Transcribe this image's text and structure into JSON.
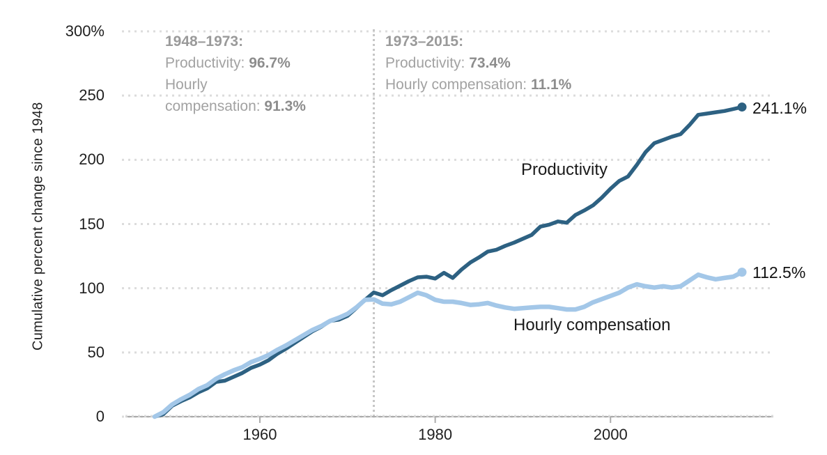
{
  "chart_data": {
    "type": "line",
    "title": "",
    "xlabel": "",
    "ylabel": "Cumulative percent change since 1948",
    "xlim": [
      1948,
      2015
    ],
    "ylim": [
      0,
      300
    ],
    "grid": "dotted-horizontal",
    "legend_position": "inline-labels",
    "x_ticks": [
      {
        "value": 1960,
        "label": "1960"
      },
      {
        "value": 1980,
        "label": "1980"
      },
      {
        "value": 2000,
        "label": "2000"
      }
    ],
    "y_ticks": [
      {
        "value": 0,
        "label": "0"
      },
      {
        "value": 50,
        "label": "50"
      },
      {
        "value": 100,
        "label": "100"
      },
      {
        "value": 150,
        "label": "150"
      },
      {
        "value": 200,
        "label": "200"
      },
      {
        "value": 250,
        "label": "250"
      },
      {
        "value": 300,
        "label": "300%"
      }
    ],
    "vertical_marker_year": 1973,
    "x": [
      1948,
      1949,
      1950,
      1951,
      1952,
      1953,
      1954,
      1955,
      1956,
      1957,
      1958,
      1959,
      1960,
      1961,
      1962,
      1963,
      1964,
      1965,
      1966,
      1967,
      1968,
      1969,
      1970,
      1971,
      1972,
      1973,
      1974,
      1975,
      1976,
      1977,
      1978,
      1979,
      1980,
      1981,
      1982,
      1983,
      1984,
      1985,
      1986,
      1987,
      1988,
      1989,
      1990,
      1991,
      1992,
      1993,
      1994,
      1995,
      1996,
      1997,
      1998,
      1999,
      2000,
      2001,
      2002,
      2003,
      2004,
      2005,
      2006,
      2007,
      2008,
      2009,
      2010,
      2011,
      2012,
      2013,
      2014,
      2015
    ],
    "series": [
      {
        "name": "Productivity",
        "color": "#2d6182",
        "end_label": "241.1%",
        "end_value": 241.1,
        "values": [
          0,
          2,
          8.5,
          12,
          15,
          19,
          22,
          27,
          28,
          31,
          34,
          38,
          40.5,
          44,
          49,
          53,
          57.5,
          62,
          66.5,
          70,
          74.5,
          75.5,
          78.5,
          84.5,
          91,
          96.7,
          94.5,
          98.5,
          102,
          105.5,
          108.5,
          109,
          107.5,
          112,
          108,
          114.5,
          120,
          124,
          128.5,
          130,
          133,
          135.5,
          138.5,
          141.5,
          148,
          149.5,
          152,
          151,
          157,
          160.5,
          164.5,
          170.5,
          177.5,
          183.5,
          187,
          196,
          206,
          213,
          215.5,
          218,
          220,
          227,
          235,
          236,
          237,
          238,
          239.5,
          241.1
        ]
      },
      {
        "name": "Hourly compensation",
        "color": "#a3c7e8",
        "end_label": "112.5%",
        "end_value": 112.5,
        "values": [
          0,
          3.5,
          9.5,
          13.5,
          17,
          21.5,
          24.5,
          29.5,
          33,
          36,
          38.5,
          42.5,
          45,
          48,
          52,
          55.5,
          59.5,
          63.5,
          67.5,
          70.5,
          74.5,
          77,
          80,
          85,
          91,
          91.3,
          88,
          87.5,
          89.5,
          93,
          96.5,
          94.5,
          91,
          89.5,
          89.5,
          88.5,
          87,
          87.5,
          88.5,
          86.5,
          85,
          84,
          84.5,
          85,
          85.5,
          85.5,
          84.5,
          83.5,
          83.5,
          85.5,
          89,
          91.5,
          94,
          96.5,
          100.5,
          103,
          101.5,
          100.5,
          101.5,
          100.5,
          101.5,
          106,
          110.5,
          108.5,
          107,
          108,
          109,
          112.5
        ]
      }
    ]
  },
  "annotations": {
    "period1": {
      "title": "1948–1973:",
      "lines": [
        {
          "prefix": "Productivity: ",
          "value": "96.7%"
        },
        {
          "prefix": "Hourly",
          "value": ""
        },
        {
          "prefix": "compensation: ",
          "value": "91.3%"
        }
      ]
    },
    "period2": {
      "title": "1973–2015:",
      "lines": [
        {
          "prefix": "Productivity: ",
          "value": "73.4%"
        },
        {
          "prefix": "Hourly compensation: ",
          "value": "11.1%"
        }
      ]
    }
  },
  "colors": {
    "background": "#ffffff",
    "axis_line": "#ababab",
    "tick_mark": "#ababab",
    "gridline_dots": "#dcdcdc",
    "vertical_marker": "#c6c6c6",
    "tick_text": "#1f1f1f",
    "annotation_text": "#a2a2a2",
    "annotation_bold_text": "#8d8d8d",
    "label_text": "#1a1a1a",
    "productivity_line": "#2d6182",
    "compensation_line": "#a3c7e8"
  }
}
